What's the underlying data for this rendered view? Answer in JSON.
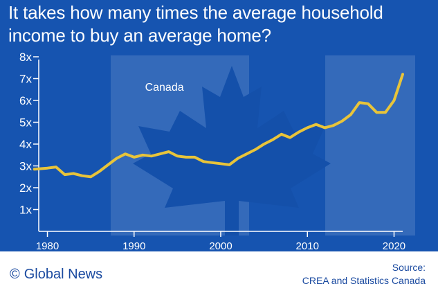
{
  "title": "It takes how many times the average household income to buy an average home?",
  "footer": {
    "brand_symbol": "©",
    "brand": "Global News",
    "source_label": "Source:",
    "source_text": "CREA and Statistics Canada"
  },
  "colors": {
    "background": "#1654b0",
    "line": "#e8c43a",
    "text": "#ffffff",
    "brand": "#1a4aa0"
  },
  "chart_data": {
    "type": "line",
    "title": "It takes how many times the average household income to buy an average home?",
    "annotation": "Canada",
    "xlabel": "",
    "ylabel": "",
    "xlim": [
      1979,
      2021
    ],
    "ylim": [
      0,
      8
    ],
    "x_ticks": [
      1980,
      1990,
      2000,
      2010,
      2020
    ],
    "x_tick_labels": [
      "1980",
      "1990",
      "2000",
      "2010",
      "2020"
    ],
    "y_ticks": [
      1,
      2,
      3,
      4,
      5,
      6,
      7,
      8
    ],
    "y_tick_labels": [
      "1x",
      "2x",
      "3x",
      "4x",
      "5x",
      "6x",
      "7x",
      "8x"
    ],
    "grid": false,
    "series": [
      {
        "x": [
          1978.5,
          1980,
          1981,
          1982,
          1983,
          1984,
          1985,
          1986,
          1987,
          1988,
          1989,
          1990,
          1991,
          1992,
          1993,
          1994,
          1995,
          1996,
          1997,
          1998,
          1999,
          2000,
          2001,
          2002,
          2003,
          2004,
          2005,
          2006,
          2007,
          2008,
          2009,
          2010,
          2011,
          2012,
          2013,
          2014,
          2015,
          2016,
          2017,
          2018,
          2019,
          2020,
          2021
        ],
        "values": [
          2.85,
          2.9,
          2.95,
          2.6,
          2.65,
          2.55,
          2.5,
          2.75,
          3.05,
          3.35,
          3.55,
          3.4,
          3.5,
          3.45,
          3.55,
          3.65,
          3.45,
          3.4,
          3.4,
          3.2,
          3.15,
          3.1,
          3.05,
          3.35,
          3.55,
          3.75,
          4.0,
          4.2,
          4.45,
          4.3,
          4.55,
          4.75,
          4.9,
          4.75,
          4.85,
          5.05,
          5.35,
          5.9,
          5.85,
          5.45,
          5.45,
          6.0,
          7.2
        ]
      }
    ]
  }
}
